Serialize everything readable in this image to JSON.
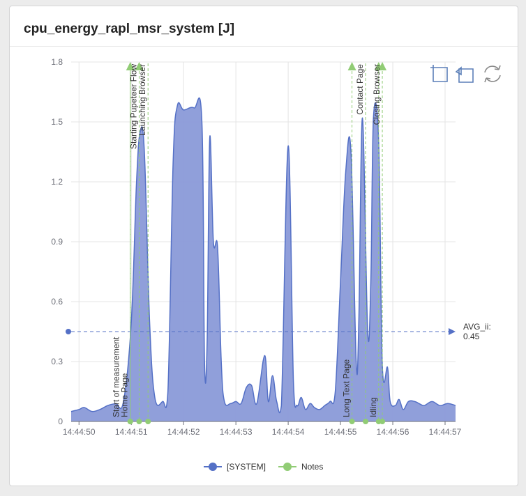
{
  "card": {
    "title": "cpu_energy_rapl_msr_system [J]"
  },
  "toolbar": [
    {
      "name": "zoom-icon"
    },
    {
      "name": "zoom-reset-icon"
    },
    {
      "name": "restore-icon"
    }
  ],
  "colors": {
    "series": "#5470c6",
    "area": "#8a9ad8",
    "notes": "#91cc75",
    "grid": "#e4e4e4",
    "axis": "#6e7079"
  },
  "chart_data": {
    "type": "area",
    "title": "cpu_energy_rapl_msr_system [J]",
    "xlabel": "",
    "ylabel": "",
    "ylim": [
      0,
      1.8
    ],
    "xlim": [
      "14:44:49.85",
      "14:44:57.20"
    ],
    "y_ticks": [
      "0",
      "0.3",
      "0.6",
      "0.9",
      "1.2",
      "1.5",
      "1.8"
    ],
    "x_ticks": [
      "14:44:50",
      "14:44:51",
      "14:44:52",
      "14:44:53",
      "14:44:54",
      "14:44:55",
      "14:44:56",
      "14:44:57"
    ],
    "grid": true,
    "legend_position": "bottom",
    "legend": [
      {
        "label": "[SYSTEM]",
        "color": "#5470c6"
      },
      {
        "label": "Notes",
        "color": "#91cc75"
      }
    ],
    "series": [
      {
        "name": "[SYSTEM]",
        "points": [
          [
            "14:44:49.85",
            0.05
          ],
          [
            "14:44:50.00",
            0.06
          ],
          [
            "14:44:50.10",
            0.07
          ],
          [
            "14:44:50.25",
            0.05
          ],
          [
            "14:44:50.40",
            0.06
          ],
          [
            "14:44:50.55",
            0.08
          ],
          [
            "14:44:50.70",
            0.09
          ],
          [
            "14:44:50.85",
            0.1
          ],
          [
            "14:44:51.00",
            0.5
          ],
          [
            "14:44:51.10",
            1.2
          ],
          [
            "14:44:51.17",
            1.45
          ],
          [
            "14:44:51.25",
            1.35
          ],
          [
            "14:44:51.35",
            0.5
          ],
          [
            "14:44:51.45",
            0.12
          ],
          [
            "14:44:51.60",
            0.1
          ],
          [
            "14:44:51.70",
            0.15
          ],
          [
            "14:44:51.80",
            1.3
          ],
          [
            "14:44:51.88",
            1.58
          ],
          [
            "14:44:52.00",
            1.56
          ],
          [
            "14:44:52.20",
            1.57
          ],
          [
            "14:44:52.35",
            1.5
          ],
          [
            "14:44:52.40",
            0.3
          ],
          [
            "14:44:52.45",
            0.4
          ],
          [
            "14:44:52.50",
            1.42
          ],
          [
            "14:44:52.57",
            0.9
          ],
          [
            "14:44:52.65",
            0.87
          ],
          [
            "14:44:52.72",
            0.3
          ],
          [
            "14:44:52.78",
            0.1
          ],
          [
            "14:44:52.90",
            0.09
          ],
          [
            "14:44:53.00",
            0.1
          ],
          [
            "14:44:53.10",
            0.09
          ],
          [
            "14:44:53.20",
            0.17
          ],
          [
            "14:44:53.30",
            0.18
          ],
          [
            "14:44:53.40",
            0.09
          ],
          [
            "14:44:53.55",
            0.33
          ],
          [
            "14:44:53.62",
            0.1
          ],
          [
            "14:44:53.70",
            0.23
          ],
          [
            "14:44:53.78",
            0.1
          ],
          [
            "14:44:53.87",
            0.08
          ],
          [
            "14:44:54.00",
            1.38
          ],
          [
            "14:44:54.10",
            0.2
          ],
          [
            "14:44:54.17",
            0.08
          ],
          [
            "14:44:54.25",
            0.12
          ],
          [
            "14:44:54.33",
            0.06
          ],
          [
            "14:44:54.42",
            0.09
          ],
          [
            "14:44:54.50",
            0.07
          ],
          [
            "14:44:54.60",
            0.06
          ],
          [
            "14:44:54.70",
            0.08
          ],
          [
            "14:44:54.80",
            0.1
          ],
          [
            "14:44:54.90",
            0.15
          ],
          [
            "14:44:55.00",
            0.7
          ],
          [
            "14:44:55.10",
            1.25
          ],
          [
            "14:44:55.20",
            1.35
          ],
          [
            "14:44:55.30",
            0.3
          ],
          [
            "14:44:55.35",
            0.5
          ],
          [
            "14:44:55.42",
            1.52
          ],
          [
            "14:44:55.52",
            0.45
          ],
          [
            "14:44:55.58",
            0.7
          ],
          [
            "14:44:55.63",
            1.52
          ],
          [
            "14:44:55.73",
            1.4
          ],
          [
            "14:44:55.80",
            0.28
          ],
          [
            "14:44:55.90",
            0.27
          ],
          [
            "14:44:55.95",
            0.1
          ],
          [
            "14:44:56.05",
            0.08
          ],
          [
            "14:44:56.12",
            0.11
          ],
          [
            "14:44:56.20",
            0.06
          ],
          [
            "14:44:56.30",
            0.1
          ],
          [
            "14:44:56.42",
            0.1
          ],
          [
            "14:44:56.50",
            0.09
          ],
          [
            "14:44:56.60",
            0.08
          ],
          [
            "14:44:56.75",
            0.1
          ],
          [
            "14:44:56.90",
            0.08
          ],
          [
            "14:44:57.05",
            0.09
          ],
          [
            "14:44:57.20",
            0.08
          ]
        ]
      }
    ],
    "mark_line": {
      "label": "AVG_ii:",
      "value_label": "0.45",
      "value": 0.45
    },
    "notes": [
      {
        "label": "Start of measurement",
        "x": "14:44:50.98",
        "arrow": false
      },
      {
        "label": "Home Page",
        "x": "14:44:50.98",
        "arrow": true
      },
      {
        "label": "Starting Pupeteer Flow",
        "x": "14:44:51.15",
        "arrow": true
      },
      {
        "label": "Launching Browser",
        "x": "14:44:51.32",
        "arrow": false
      },
      {
        "label": "Long Text Page",
        "x": "14:44:55.22",
        "arrow": true
      },
      {
        "label": "Contact Page",
        "x": "14:44:55.48",
        "arrow": false
      },
      {
        "label": "Idling",
        "x": "14:44:55.73",
        "arrow": true
      },
      {
        "label": "Closing Browser",
        "x": "14:44:55.80",
        "arrow": true
      }
    ]
  }
}
